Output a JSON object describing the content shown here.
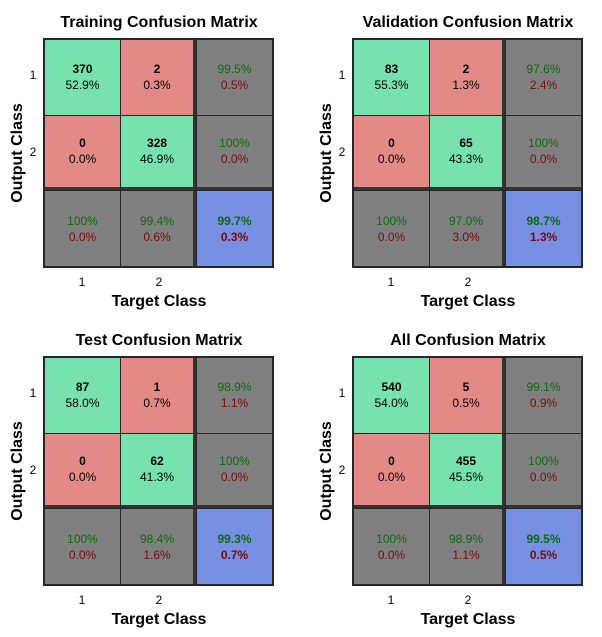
{
  "chart_data": [
    {
      "type": "table",
      "title": "Training Confusion Matrix",
      "xlabel": "Target Class",
      "ylabel": "Output Class",
      "classes": [
        "1",
        "2"
      ],
      "cells": [
        [
          {
            "count": "370",
            "pct": "52.9%"
          },
          {
            "count": "2",
            "pct": "0.3%"
          },
          {
            "pct_correct": "99.5%",
            "pct_wrong": "0.5%"
          }
        ],
        [
          {
            "count": "0",
            "pct": "0.0%"
          },
          {
            "count": "328",
            "pct": "46.9%"
          },
          {
            "pct_correct": "100%",
            "pct_wrong": "0.0%"
          }
        ],
        [
          {
            "pct_correct": "100%",
            "pct_wrong": "0.0%"
          },
          {
            "pct_correct": "99.4%",
            "pct_wrong": "0.6%"
          },
          {
            "pct_correct": "99.7%",
            "pct_wrong": "0.3%"
          }
        ]
      ]
    },
    {
      "type": "table",
      "title": "Validation Confusion Matrix",
      "xlabel": "Target Class",
      "ylabel": "Output Class",
      "classes": [
        "1",
        "2"
      ],
      "cells": [
        [
          {
            "count": "83",
            "pct": "55.3%"
          },
          {
            "count": "2",
            "pct": "1.3%"
          },
          {
            "pct_correct": "97.6%",
            "pct_wrong": "2.4%"
          }
        ],
        [
          {
            "count": "0",
            "pct": "0.0%"
          },
          {
            "count": "65",
            "pct": "43.3%"
          },
          {
            "pct_correct": "100%",
            "pct_wrong": "0.0%"
          }
        ],
        [
          {
            "pct_correct": "100%",
            "pct_wrong": "0.0%"
          },
          {
            "pct_correct": "97.0%",
            "pct_wrong": "3.0%"
          },
          {
            "pct_correct": "98.7%",
            "pct_wrong": "1.3%"
          }
        ]
      ]
    },
    {
      "type": "table",
      "title": "Test Confusion Matrix",
      "xlabel": "Target Class",
      "ylabel": "Output Class",
      "classes": [
        "1",
        "2"
      ],
      "cells": [
        [
          {
            "count": "87",
            "pct": "58.0%"
          },
          {
            "count": "1",
            "pct": "0.7%"
          },
          {
            "pct_correct": "98.9%",
            "pct_wrong": "1.1%"
          }
        ],
        [
          {
            "count": "0",
            "pct": "0.0%"
          },
          {
            "count": "62",
            "pct": "41.3%"
          },
          {
            "pct_correct": "100%",
            "pct_wrong": "0.0%"
          }
        ],
        [
          {
            "pct_correct": "100%",
            "pct_wrong": "0.0%"
          },
          {
            "pct_correct": "98.4%",
            "pct_wrong": "1.6%"
          },
          {
            "pct_correct": "99.3%",
            "pct_wrong": "0.7%"
          }
        ]
      ]
    },
    {
      "type": "table",
      "title": "All Confusion Matrix",
      "xlabel": "Target Class",
      "ylabel": "Output Class",
      "classes": [
        "1",
        "2"
      ],
      "cells": [
        [
          {
            "count": "540",
            "pct": "54.0%"
          },
          {
            "count": "5",
            "pct": "0.5%"
          },
          {
            "pct_correct": "99.1%",
            "pct_wrong": "0.9%"
          }
        ],
        [
          {
            "count": "0",
            "pct": "0.0%"
          },
          {
            "count": "455",
            "pct": "45.5%"
          },
          {
            "pct_correct": "100%",
            "pct_wrong": "0.0%"
          }
        ],
        [
          {
            "pct_correct": "100%",
            "pct_wrong": "0.0%"
          },
          {
            "pct_correct": "98.9%",
            "pct_wrong": "1.1%"
          },
          {
            "pct_correct": "99.5%",
            "pct_wrong": "0.5%"
          }
        ]
      ]
    }
  ],
  "colors": {
    "correct": "#77e2b0",
    "wrong": "#e48a86",
    "summary": "#808080",
    "overall": "#7790e4",
    "pct_correct_text": "#0b6b0b",
    "pct_wrong_text": "#7a0b0b"
  }
}
